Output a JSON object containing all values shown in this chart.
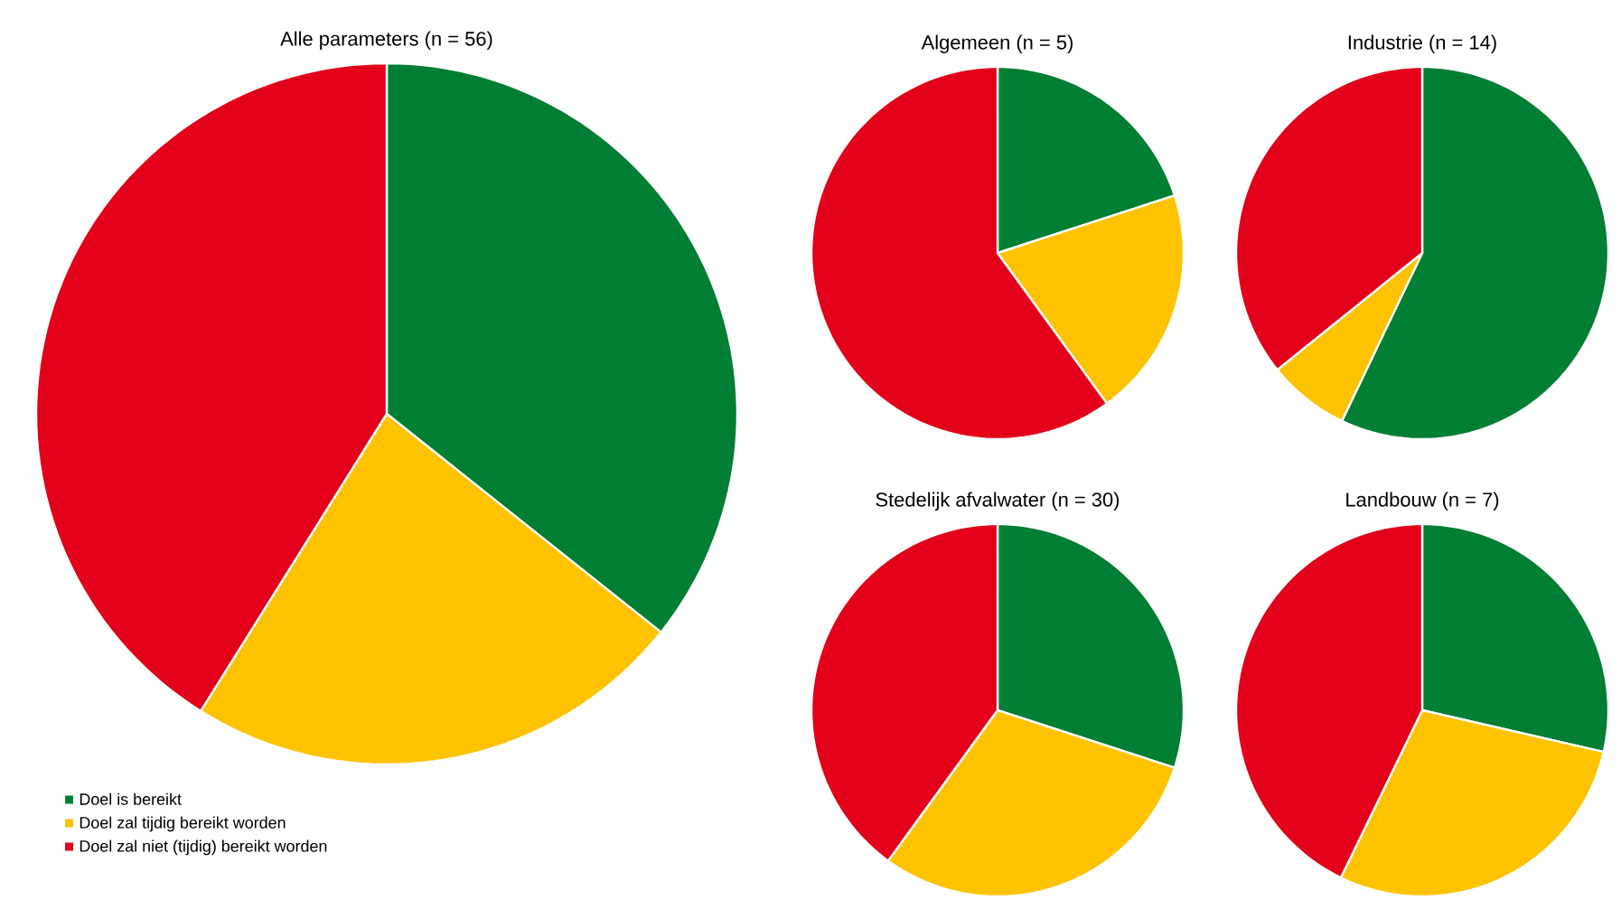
{
  "chart_data": [
    {
      "type": "pie",
      "title": "Alle parameters (n = 56)",
      "categories": [
        "Doel is bereikt",
        "Doel zal tijdig bereikt worden",
        "Doel zal niet (tijdig) bereikt worden"
      ],
      "values": [
        35.7,
        23.2,
        41.1
      ],
      "colors": [
        "#007e33",
        "#fdc300",
        "#e2001a"
      ],
      "legend": "bottom left"
    },
    {
      "type": "pie",
      "title": "Algemeen (n = 5)",
      "categories": [
        null,
        null,
        null
      ],
      "values": [
        20,
        20,
        60
      ],
      "colors": [
        "#007e33",
        "#fdc300",
        "#e2001a"
      ]
    },
    {
      "type": "pie",
      "title": "Industrie (n = 14)",
      "categories": [
        null,
        null,
        null
      ],
      "values": [
        57.1,
        7.1,
        35.8
      ],
      "colors": [
        "#007e33",
        "#fdc300",
        "#e2001a"
      ]
    },
    {
      "type": "pie",
      "title": "Stedelijk afvalwater (n = 30)",
      "categories": [
        null,
        null,
        null
      ],
      "values": [
        30,
        30,
        40
      ],
      "colors": [
        "#007e33",
        "#fdc300",
        "#e2001a"
      ]
    },
    {
      "type": "pie",
      "title": "Landbouw (n = 7)",
      "categories": [
        null,
        null,
        null
      ],
      "values": [
        28.6,
        28.6,
        42.8
      ],
      "colors": [
        "#007e33",
        "#fdc300",
        "#e2001a"
      ]
    }
  ]
}
